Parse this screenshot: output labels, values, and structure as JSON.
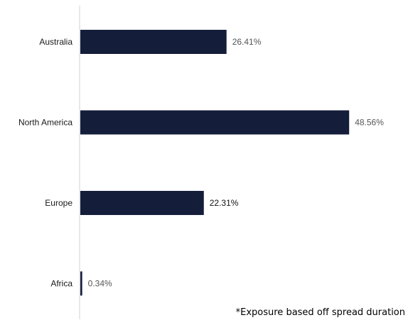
{
  "chart_data": {
    "type": "bar",
    "orientation": "horizontal",
    "categories": [
      "Australia",
      "North America",
      "Europe",
      "Africa"
    ],
    "values": [
      26.41,
      48.56,
      22.31,
      0.34
    ],
    "value_labels": [
      "26.41%",
      "48.56%",
      "22.31%",
      "0.34%"
    ],
    "title": "",
    "xlabel": "",
    "ylabel": "",
    "xlim": [
      0,
      52
    ],
    "grid": false,
    "legend": "none"
  },
  "footnote": "*Exposure based off spread duration",
  "colors": {
    "bar": "#141d3a",
    "axis": "#d0d0d0",
    "value_label": "#555555",
    "value_label_highlight": "#111111"
  }
}
